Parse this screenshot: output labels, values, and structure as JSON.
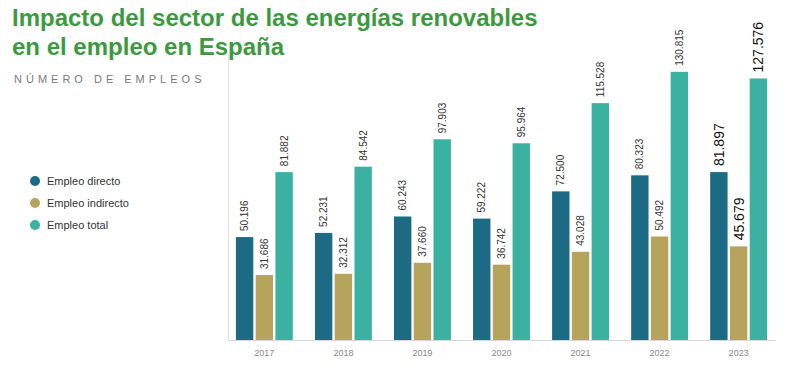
{
  "chart_data": {
    "type": "bar",
    "title": "Impacto del sector de las energías renovables en el empleo en España",
    "subtitle": "NÚMERO DE EMPLEOS",
    "categories": [
      "2017",
      "2018",
      "2019",
      "2020",
      "2021",
      "2022",
      "2023"
    ],
    "series": [
      {
        "name": "Empleo directo",
        "color": "#1d6a85",
        "values": [
          50196,
          52231,
          60243,
          59222,
          72500,
          80323,
          81897
        ],
        "value_labels": [
          "50.196",
          "52.231",
          "60.243",
          "59.222",
          "72.500",
          "80.323",
          "81.897"
        ]
      },
      {
        "name": "Empleo indirecto",
        "color": "#b6a35c",
        "values": [
          31686,
          32312,
          37660,
          36742,
          43028,
          50492,
          45679
        ],
        "value_labels": [
          "31.686",
          "32.312",
          "37.660",
          "36.742",
          "43.028",
          "50.492",
          "45.679"
        ]
      },
      {
        "name": "Empleo total",
        "color": "#3bb1a2",
        "values": [
          81882,
          84542,
          97903,
          95964,
          115528,
          130815,
          127576
        ],
        "value_labels": [
          "81.882",
          "84.542",
          "97.903",
          "95.964",
          "115.528",
          "130.815",
          "127.576"
        ]
      }
    ],
    "ylim": [
      0,
      140000
    ],
    "data_labels": true,
    "tick_labels": "x",
    "legend": "left",
    "grid": false
  }
}
